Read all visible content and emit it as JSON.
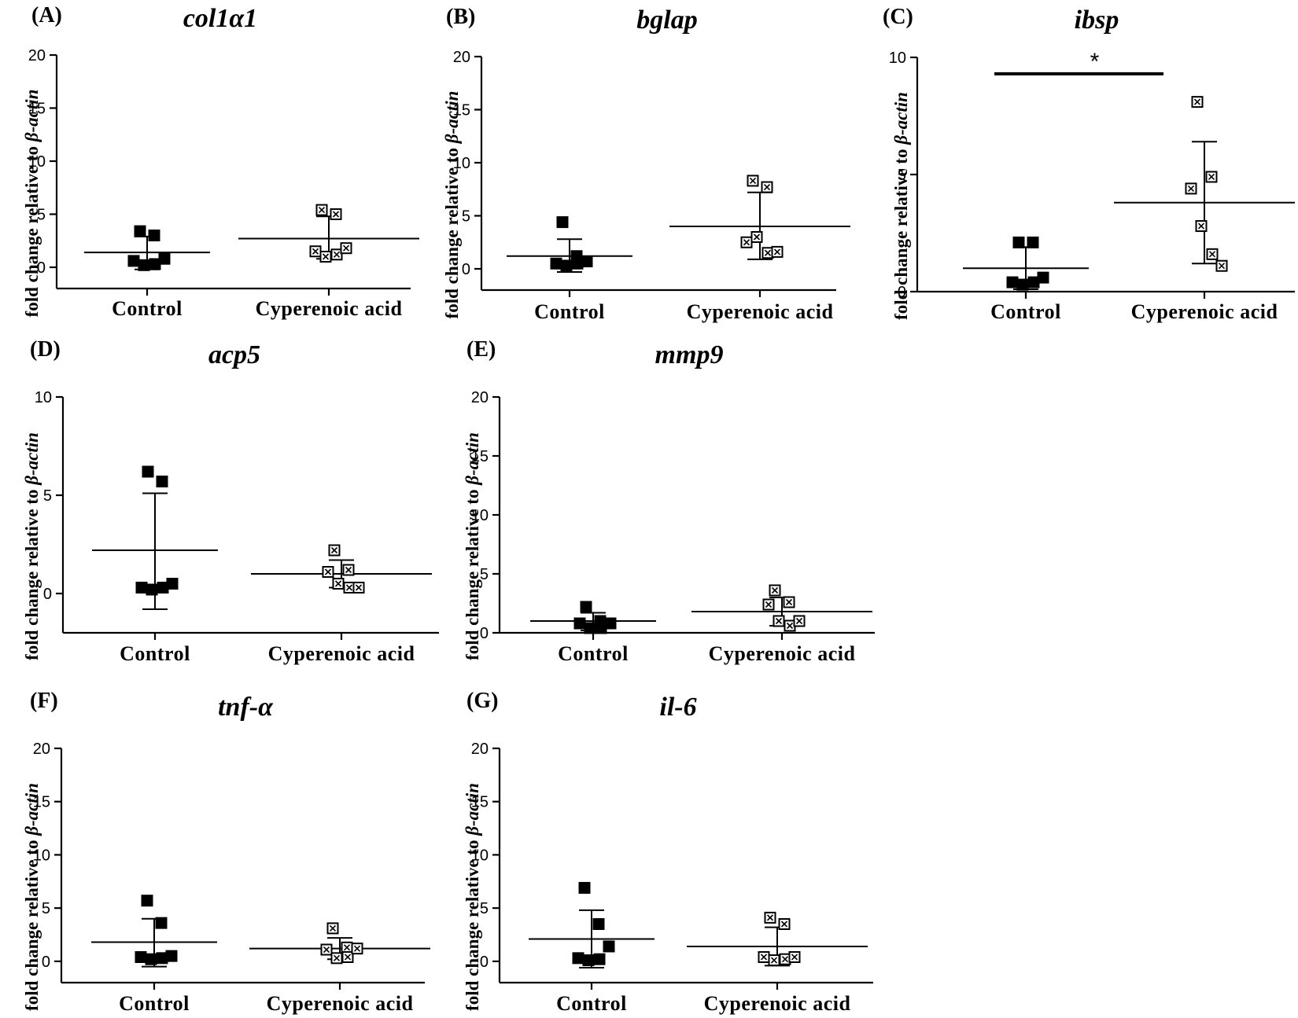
{
  "figure": {
    "y_axis_label_prefix": "fold change relative to ",
    "y_axis_label_gene": "β-actin",
    "categories": [
      "Control",
      "Cyperenoic acid"
    ],
    "marker_styles": {
      "Control": "filled-square",
      "Cyperenoic acid": "crossed-open-square"
    }
  },
  "chart_data": [
    {
      "panel": "(A)",
      "title": "col1α1",
      "type": "scatter",
      "ylabel": "fold change relative to β-actin",
      "categories": [
        "Control",
        "Cyperenoic acid"
      ],
      "yticks": [
        0,
        5,
        10,
        15,
        20
      ],
      "ylim": [
        -2,
        20
      ],
      "series": [
        {
          "name": "Control",
          "values": [
            3.4,
            3.0,
            0.6,
            0.2,
            0.3,
            0.8
          ],
          "mean": 1.4,
          "sd_upper": 2.9,
          "sd_lower": -0.2
        },
        {
          "name": "Cyperenoic acid",
          "values": [
            5.4,
            5.0,
            1.5,
            1.0,
            1.2,
            1.8
          ],
          "mean": 2.7,
          "sd_upper": 4.8,
          "sd_lower": 0.8
        }
      ],
      "significance": null
    },
    {
      "panel": "(B)",
      "title": "bglap",
      "type": "scatter",
      "ylabel": "fold change relative to β-actin",
      "categories": [
        "Control",
        "Cyperenoic acid"
      ],
      "yticks": [
        0,
        5,
        10,
        15,
        20
      ],
      "ylim": [
        -2,
        20
      ],
      "series": [
        {
          "name": "Control",
          "values": [
            4.4,
            1.2,
            0.5,
            0.3,
            0.5,
            0.7
          ],
          "mean": 1.2,
          "sd_upper": 2.8,
          "sd_lower": -0.3
        },
        {
          "name": "Cyperenoic acid",
          "values": [
            8.3,
            7.7,
            2.5,
            3.0,
            1.5,
            1.6
          ],
          "mean": 4.0,
          "sd_upper": 7.2,
          "sd_lower": 0.9
        }
      ],
      "significance": null
    },
    {
      "panel": "(C)",
      "title": "ibsp",
      "type": "scatter",
      "ylabel": "fold change relative to β-actin",
      "categories": [
        "Control",
        "Cyperenoic acid"
      ],
      "yticks": [
        0,
        5,
        10
      ],
      "ylim": [
        0,
        10
      ],
      "series": [
        {
          "name": "Control",
          "values": [
            2.1,
            2.1,
            0.4,
            0.3,
            0.4,
            0.6
          ],
          "mean": 1.0,
          "sd_upper": 1.9,
          "sd_lower": 0.1
        },
        {
          "name": "Cyperenoic acid",
          "values": [
            8.1,
            4.9,
            4.4,
            2.8,
            1.6,
            1.1
          ],
          "mean": 3.8,
          "sd_upper": 6.4,
          "sd_lower": 1.2
        }
      ],
      "significance": {
        "label": "*",
        "between": [
          "Control",
          "Cyperenoic acid"
        ],
        "level": 9.3
      }
    },
    {
      "panel": "(D)",
      "title": "acp5",
      "type": "scatter",
      "ylabel": "fold change relative to β-actin",
      "categories": [
        "Control",
        "Cyperenoic acid"
      ],
      "yticks": [
        0,
        5,
        10
      ],
      "ylim": [
        -2,
        10
      ],
      "series": [
        {
          "name": "Control",
          "values": [
            6.2,
            5.7,
            0.3,
            0.2,
            0.3,
            0.5
          ],
          "mean": 2.2,
          "sd_upper": 5.1,
          "sd_lower": -0.8
        },
        {
          "name": "Cyperenoic acid",
          "values": [
            2.2,
            1.2,
            1.1,
            0.5,
            0.3,
            0.3
          ],
          "mean": 1.0,
          "sd_upper": 1.7,
          "sd_lower": 0.3
        }
      ],
      "significance": null
    },
    {
      "panel": "(E)",
      "title": "mmp9",
      "type": "scatter",
      "ylabel": "fold change relative to β-actin",
      "categories": [
        "Control",
        "Cyperenoic acid"
      ],
      "yticks": [
        0,
        5,
        10,
        15,
        20
      ],
      "ylim": [
        0,
        20
      ],
      "series": [
        {
          "name": "Control",
          "values": [
            2.2,
            1.0,
            0.8,
            0.4,
            0.4,
            0.8
          ],
          "mean": 1.0,
          "sd_upper": 1.7,
          "sd_lower": 0.2
        },
        {
          "name": "Cyperenoic acid",
          "values": [
            3.6,
            2.6,
            2.4,
            1.0,
            0.6,
            1.0
          ],
          "mean": 1.8,
          "sd_upper": 3.0,
          "sd_lower": 0.6
        }
      ],
      "significance": null
    },
    {
      "panel": "(F)",
      "title": "tnf-α",
      "type": "scatter",
      "ylabel": "fold change relative to β-actin",
      "categories": [
        "Control",
        "Cyperenoic acid"
      ],
      "yticks": [
        0,
        5,
        10,
        15,
        20
      ],
      "ylim": [
        -2,
        20
      ],
      "series": [
        {
          "name": "Control",
          "values": [
            5.7,
            3.6,
            0.4,
            0.2,
            0.3,
            0.5
          ],
          "mean": 1.8,
          "sd_upper": 4.0,
          "sd_lower": -0.5
        },
        {
          "name": "Cyperenoic acid",
          "values": [
            3.1,
            1.3,
            1.1,
            0.3,
            0.4,
            1.2
          ],
          "mean": 1.2,
          "sd_upper": 2.2,
          "sd_lower": 0.2
        }
      ],
      "significance": null
    },
    {
      "panel": "(G)",
      "title": "il-6",
      "type": "scatter",
      "ylabel": "fold change relative to β-actin",
      "categories": [
        "Control",
        "Cyperenoic acid"
      ],
      "yticks": [
        0,
        5,
        10,
        15,
        20
      ],
      "ylim": [
        -2,
        20
      ],
      "series": [
        {
          "name": "Control",
          "values": [
            6.9,
            3.5,
            0.3,
            0.1,
            0.2,
            1.4
          ],
          "mean": 2.1,
          "sd_upper": 4.8,
          "sd_lower": -0.6
        },
        {
          "name": "Cyperenoic acid",
          "values": [
            4.1,
            3.5,
            0.4,
            0.1,
            0.2,
            0.4
          ],
          "mean": 1.4,
          "sd_upper": 3.2,
          "sd_lower": -0.4
        }
      ],
      "significance": null
    }
  ]
}
